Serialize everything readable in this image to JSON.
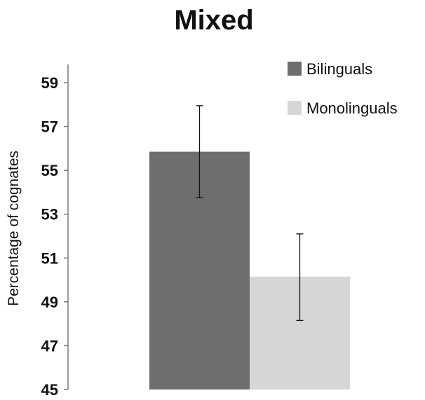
{
  "chart_data": {
    "type": "bar",
    "title": "Mixed",
    "ylabel": "Percentage of cognates",
    "xlabel": "",
    "ylim": [
      45,
      59
    ],
    "yticks": [
      45,
      47,
      49,
      51,
      53,
      55,
      57,
      59
    ],
    "legend_position": "top-right",
    "grid": false,
    "series": [
      {
        "name": "Bilinguals",
        "value": 55.85,
        "error_low": 53.75,
        "error_high": 57.95,
        "color": "#6e6e6e"
      },
      {
        "name": "Monolinguals",
        "value": 50.15,
        "error_low": 48.15,
        "error_high": 52.1,
        "color": "#d6d6d6"
      }
    ]
  }
}
